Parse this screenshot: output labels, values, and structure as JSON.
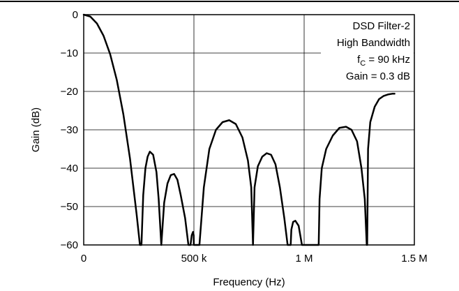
{
  "page": {
    "rule_color": "#000000"
  },
  "chart_data": {
    "type": "line",
    "xlabel": "Frequency (Hz)",
    "ylabel": "Gain (dB)",
    "xlim": [
      0,
      1500000
    ],
    "ylim": [
      -60,
      0
    ],
    "x_ticks": [
      {
        "value": 0,
        "label": "0"
      },
      {
        "value": 500000,
        "label": "500 k"
      },
      {
        "value": 1000000,
        "label": "1 M"
      },
      {
        "value": 1500000,
        "label": "1.5 M"
      }
    ],
    "y_ticks": [
      {
        "value": 0,
        "label": "0"
      },
      {
        "value": -10,
        "label": "−10"
      },
      {
        "value": -20,
        "label": "−20"
      },
      {
        "value": -30,
        "label": "−30"
      },
      {
        "value": -40,
        "label": "−40"
      },
      {
        "value": -50,
        "label": "−50"
      },
      {
        "value": -60,
        "label": "−60"
      }
    ],
    "grid": true,
    "annotation": {
      "line1": "DSD Filter-2",
      "line2": "High Bandwidth",
      "line3_prefix": "f",
      "line3_sub": "C",
      "line3_suffix": " = 90 kHz",
      "line4": "Gain = 0.3 dB",
      "placement": "top-right"
    },
    "series": [
      {
        "color": "#000000",
        "x": [
          0,
          30000,
          60000,
          90000,
          120000,
          150000,
          180000,
          210000,
          240000,
          255000,
          262000,
          270000,
          280000,
          290000,
          300000,
          315000,
          330000,
          340000,
          345000,
          352000,
          365000,
          380000,
          395000,
          410000,
          425000,
          440000,
          460000,
          475000,
          484000,
          484500,
          490000,
          496000,
          499000,
          499500,
          525000,
          545000,
          570000,
          600000,
          630000,
          660000,
          690000,
          720000,
          745000,
          760000,
          768000,
          775000,
          790000,
          810000,
          830000,
          850000,
          870000,
          890000,
          910000,
          925000,
          935000,
          939000,
          942000,
          950000,
          960000,
          975000,
          990000,
          1000000,
          1012000,
          1015000,
          1066000,
          1070000,
          1080000,
          1100000,
          1130000,
          1160000,
          1190000,
          1215000,
          1240000,
          1260000,
          1275000,
          1284000,
          1286000,
          1290000,
          1300000,
          1320000,
          1340000,
          1360000,
          1380000,
          1400000,
          1410000
        ],
        "y": [
          0,
          -0.5,
          -2.3,
          -5.5,
          -10.3,
          -17.0,
          -26.0,
          -37.5,
          -52.0,
          -60.0,
          -60.0,
          -47.0,
          -40.0,
          -37.0,
          -35.7,
          -36.5,
          -41.0,
          -48.0,
          -53.0,
          -60.0,
          -49.0,
          -44.0,
          -41.8,
          -41.5,
          -43.0,
          -47.0,
          -53.0,
          -60.0,
          -60.0,
          -60.0,
          -57.5,
          -56.6,
          -57.5,
          -60.0,
          -60.0,
          -45.0,
          -35.0,
          -30.0,
          -28.0,
          -27.5,
          -28.5,
          -32.0,
          -38.0,
          -45.0,
          -60.0,
          -45.0,
          -39.5,
          -37.0,
          -36.1,
          -36.5,
          -39.0,
          -45.0,
          -53.0,
          -60.0,
          -60.0,
          -60.0,
          -56.0,
          -54.0,
          -53.7,
          -55.0,
          -60.0,
          -60.0,
          -60.0,
          -60.0,
          -60.0,
          -48.0,
          -40.0,
          -35.0,
          -31.5,
          -29.5,
          -29.2,
          -30.0,
          -33.0,
          -40.0,
          -48.0,
          -60.0,
          -60.0,
          -35.0,
          -28.0,
          -24.0,
          -22.0,
          -21.2,
          -20.8,
          -20.6,
          -20.6
        ]
      }
    ]
  }
}
